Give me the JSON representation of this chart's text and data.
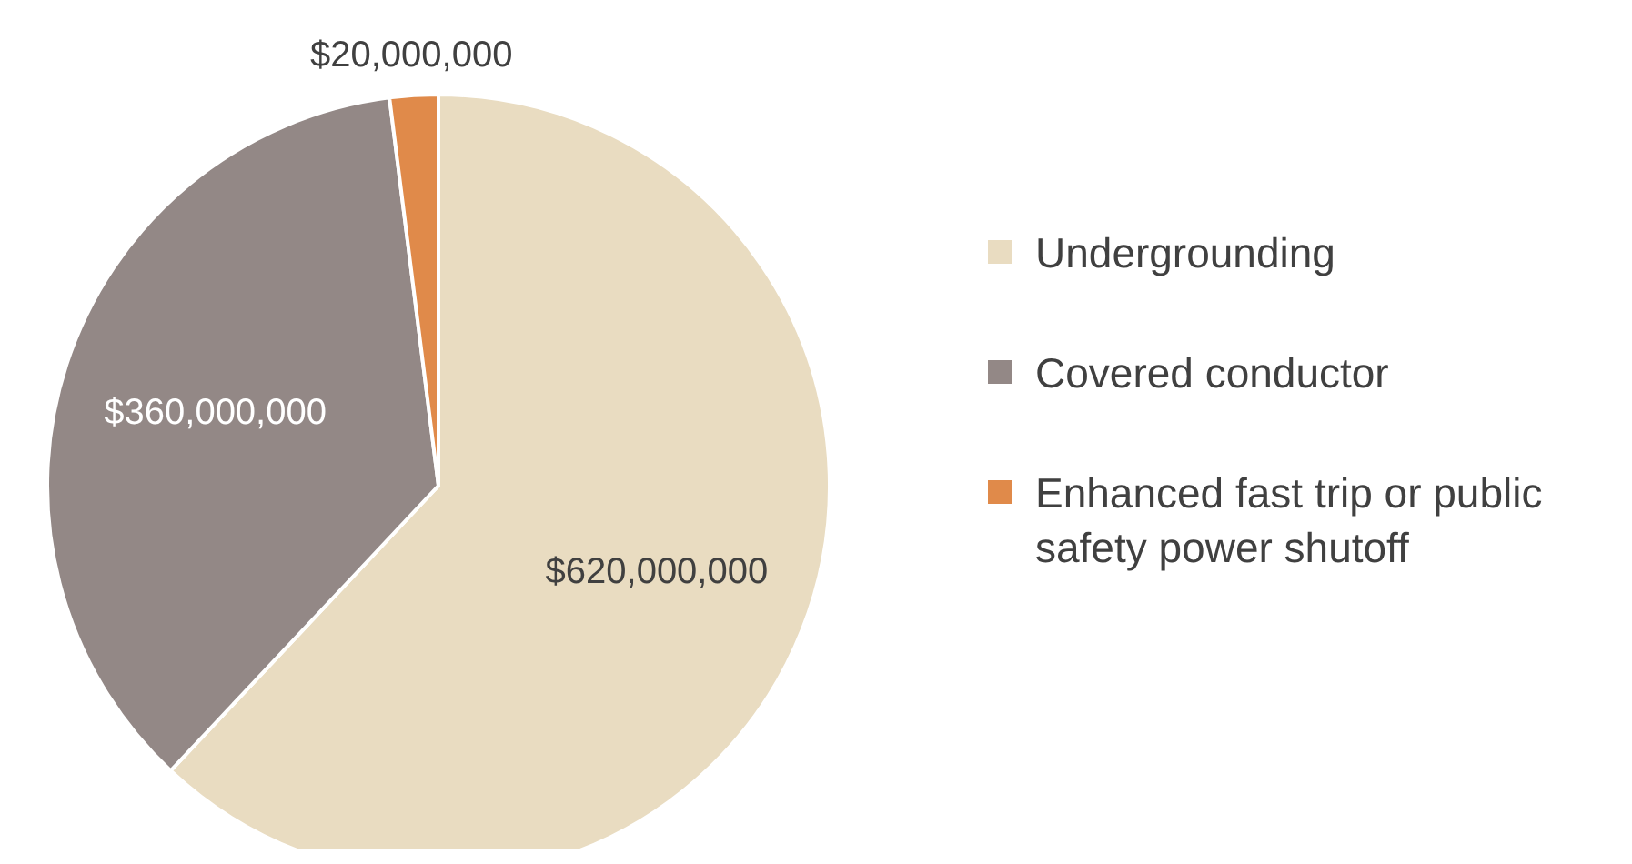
{
  "chart_data": {
    "type": "pie",
    "categories": [
      "Undergrounding",
      "Covered conductor",
      "Enhanced fast trip or public safety power shutoff"
    ],
    "values": [
      620000000,
      360000000,
      20000000
    ],
    "colors": [
      "#e9dcc1",
      "#938886",
      "#e08a4a"
    ],
    "value_labels": [
      "$620,000,000",
      "$360,000,000",
      "$20,000,000"
    ],
    "legend": "right"
  }
}
